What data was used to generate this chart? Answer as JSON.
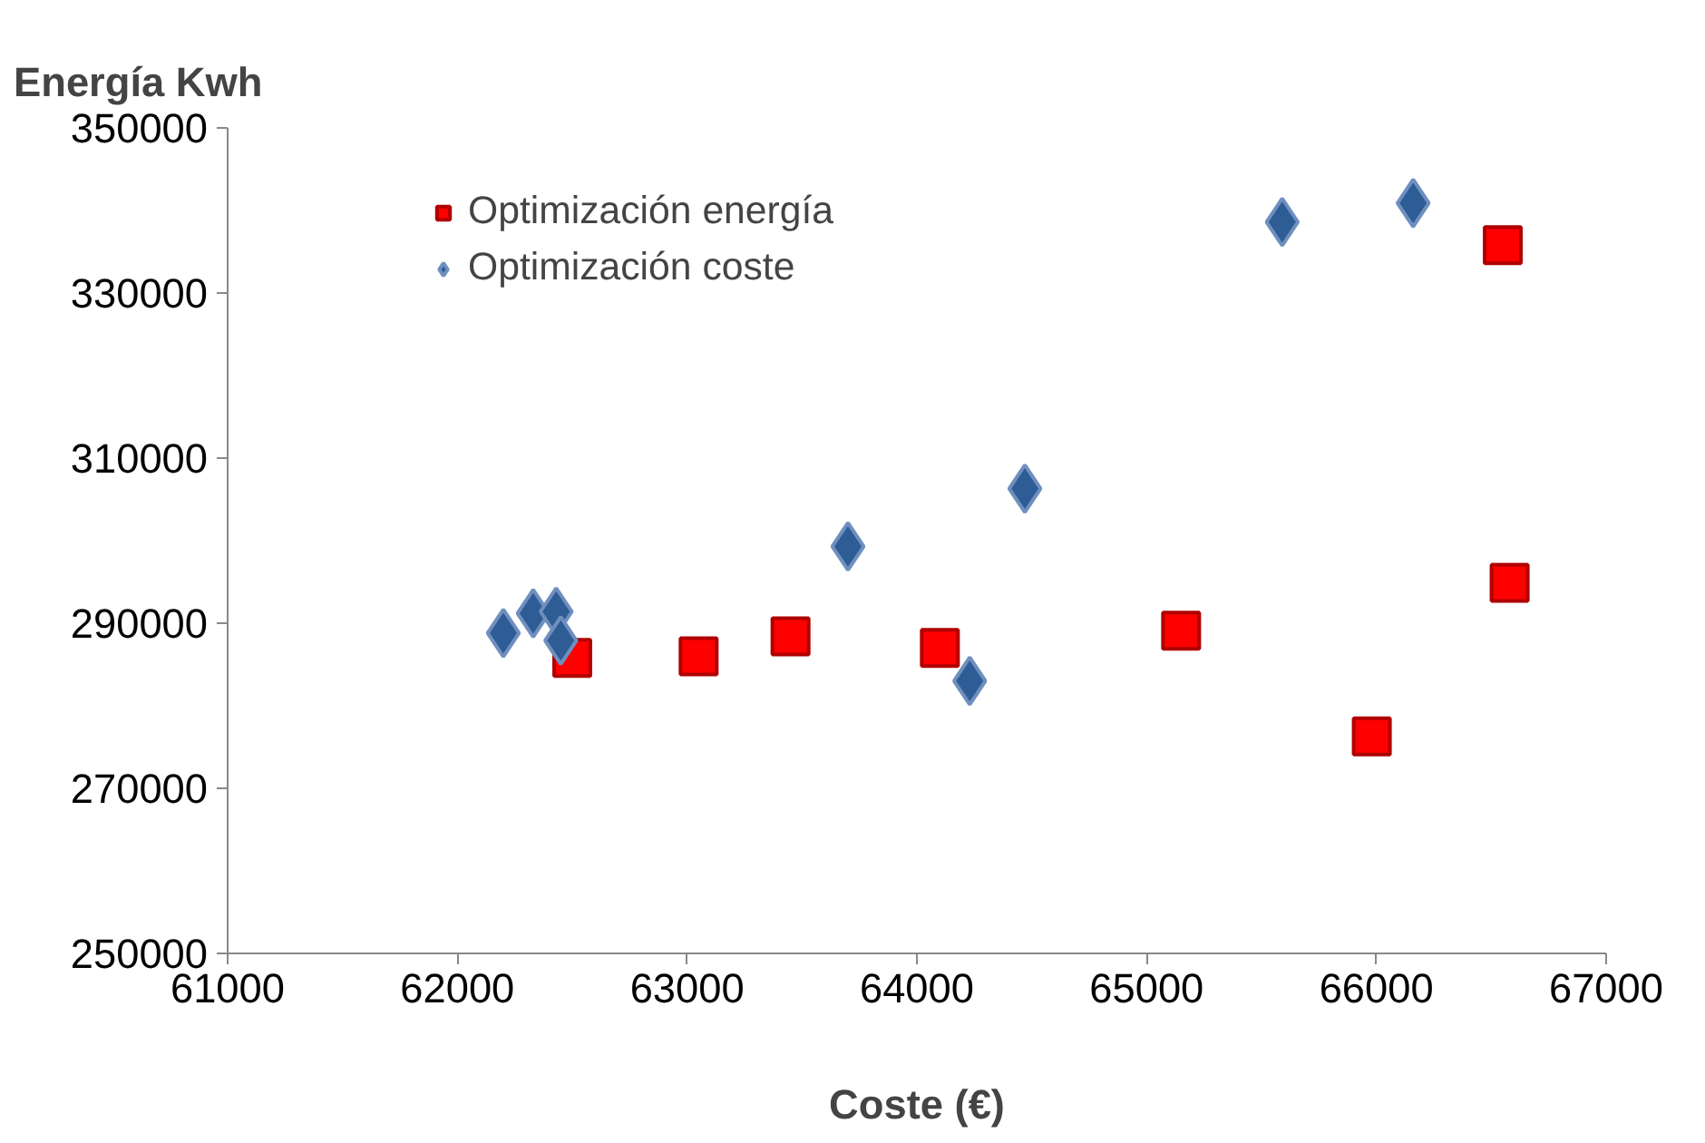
{
  "chart_data": {
    "type": "scatter",
    "xlabel": "Coste (€)",
    "ylabel": "Energía Kwh",
    "xlim": [
      61000,
      67000
    ],
    "xticks": [
      61000,
      62000,
      63000,
      64000,
      65000,
      66000,
      67000
    ],
    "ylim": [
      250000,
      350000
    ],
    "yticks": [
      250000,
      270000,
      290000,
      310000,
      330000,
      350000
    ],
    "grid": false,
    "legend": "top left",
    "series": [
      {
        "name": "Optimización energía",
        "color": "#ff0000",
        "marker": "square",
        "x": [
          62500,
          63050,
          63450,
          64100,
          65150,
          65980,
          66550,
          66580
        ],
        "values": [
          285800,
          286000,
          288400,
          287000,
          289100,
          276300,
          335800,
          294900
        ]
      },
      {
        "name": "Optimización coste",
        "color": "#2e5c94",
        "marker": "diamond",
        "x": [
          62200,
          62330,
          62430,
          62450,
          63700,
          64230,
          64470,
          65590,
          66160
        ],
        "values": [
          288800,
          291200,
          291400,
          287900,
          299300,
          283000,
          306300,
          338600,
          340900
        ]
      }
    ]
  }
}
